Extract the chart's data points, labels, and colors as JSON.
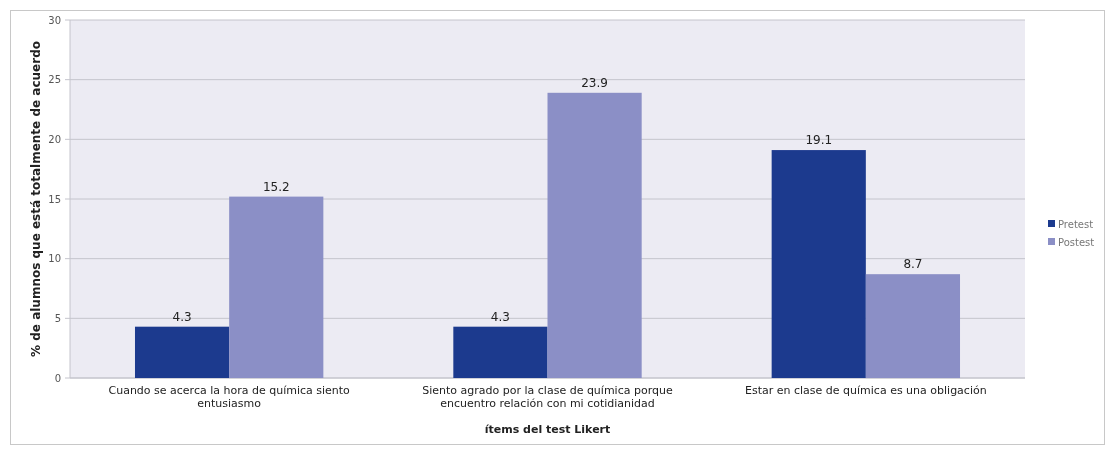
{
  "chart_data": {
    "type": "bar",
    "xlabel": "ítems del test Likert",
    "ylabel": "% de alumnos que está totalmente de acuerdo",
    "categories": [
      "Cuando se acerca la hora de química siento entusiasmo",
      "Siento agrado por la clase de química porque encuentro relación con mi cotidianidad",
      "Estar en clase de química es una obligación"
    ],
    "series": [
      {
        "name": "Pretest",
        "color": "#1c3a8e",
        "values": [
          4.3,
          4.3,
          19.1
        ]
      },
      {
        "name": "Postest",
        "color": "#8b8fc6",
        "values": [
          15.2,
          23.9,
          8.7
        ]
      }
    ],
    "ylim": [
      0,
      30
    ],
    "yticks": [
      0,
      5,
      10,
      15,
      20,
      25,
      30
    ],
    "grid": "y",
    "legend": "right",
    "data_labels": true
  }
}
